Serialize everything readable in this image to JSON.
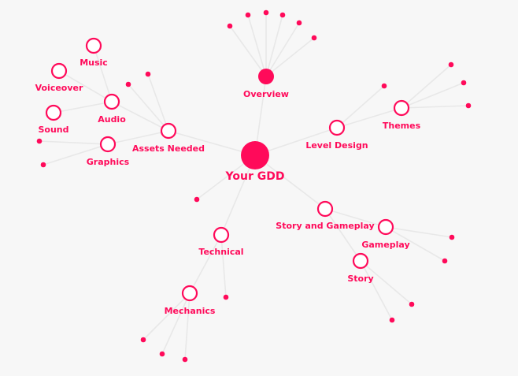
{
  "colors": {
    "accent": "#ff0a5a",
    "edge": "#e8e8e8",
    "background": "#f7f7f7",
    "node_fill": "#ffffff"
  },
  "nodes": [
    {
      "id": "root",
      "label": "Your GDD",
      "style": "root"
    },
    {
      "id": "overview",
      "label": "Overview",
      "style": "filled"
    },
    {
      "id": "level-design",
      "label": "Level Design",
      "style": "hollow"
    },
    {
      "id": "themes",
      "label": "Themes",
      "style": "hollow"
    },
    {
      "id": "assets-needed",
      "label": "Assets Needed",
      "style": "hollow"
    },
    {
      "id": "audio",
      "label": "Audio",
      "style": "hollow"
    },
    {
      "id": "music",
      "label": "Music",
      "style": "hollow"
    },
    {
      "id": "voiceover",
      "label": "Voiceover",
      "style": "hollow"
    },
    {
      "id": "sound",
      "label": "Sound",
      "style": "hollow"
    },
    {
      "id": "graphics",
      "label": "Graphics",
      "style": "hollow"
    },
    {
      "id": "story-and-gameplay",
      "label": "Story and Gameplay",
      "style": "hollow"
    },
    {
      "id": "gameplay",
      "label": "Gameplay",
      "style": "hollow"
    },
    {
      "id": "story",
      "label": "Story",
      "style": "hollow"
    },
    {
      "id": "technical",
      "label": "Technical",
      "style": "hollow"
    },
    {
      "id": "mechanics",
      "label": "Mechanics",
      "style": "hollow"
    }
  ],
  "edges": [
    [
      "root",
      "overview"
    ],
    [
      "root",
      "level-design"
    ],
    [
      "root",
      "assets-needed"
    ],
    [
      "root",
      "story-and-gameplay"
    ],
    [
      "root",
      "technical"
    ],
    [
      "root",
      "leaf-root-1"
    ],
    [
      "overview",
      "leaf-ov-1"
    ],
    [
      "overview",
      "leaf-ov-2"
    ],
    [
      "overview",
      "leaf-ov-3"
    ],
    [
      "overview",
      "leaf-ov-4"
    ],
    [
      "overview",
      "leaf-ov-5"
    ],
    [
      "overview",
      "leaf-ov-6"
    ],
    [
      "level-design",
      "themes"
    ],
    [
      "level-design",
      "leaf-ld-1"
    ],
    [
      "themes",
      "leaf-th-1"
    ],
    [
      "themes",
      "leaf-th-2"
    ],
    [
      "themes",
      "leaf-th-3"
    ],
    [
      "assets-needed",
      "audio"
    ],
    [
      "assets-needed",
      "graphics"
    ],
    [
      "assets-needed",
      "leaf-an-1"
    ],
    [
      "assets-needed",
      "leaf-an-2"
    ],
    [
      "audio",
      "music"
    ],
    [
      "audio",
      "voiceover"
    ],
    [
      "audio",
      "sound"
    ],
    [
      "graphics",
      "leaf-gr-1"
    ],
    [
      "graphics",
      "leaf-gr-2"
    ],
    [
      "story-and-gameplay",
      "gameplay"
    ],
    [
      "story-and-gameplay",
      "story"
    ],
    [
      "gameplay",
      "leaf-gp-1"
    ],
    [
      "gameplay",
      "leaf-gp-2"
    ],
    [
      "story",
      "leaf-st-1"
    ],
    [
      "story",
      "leaf-st-2"
    ],
    [
      "technical",
      "mechanics"
    ],
    [
      "technical",
      "leaf-te-1"
    ],
    [
      "mechanics",
      "leaf-me-1"
    ],
    [
      "mechanics",
      "leaf-me-2"
    ],
    [
      "mechanics",
      "leaf-me-3"
    ]
  ]
}
